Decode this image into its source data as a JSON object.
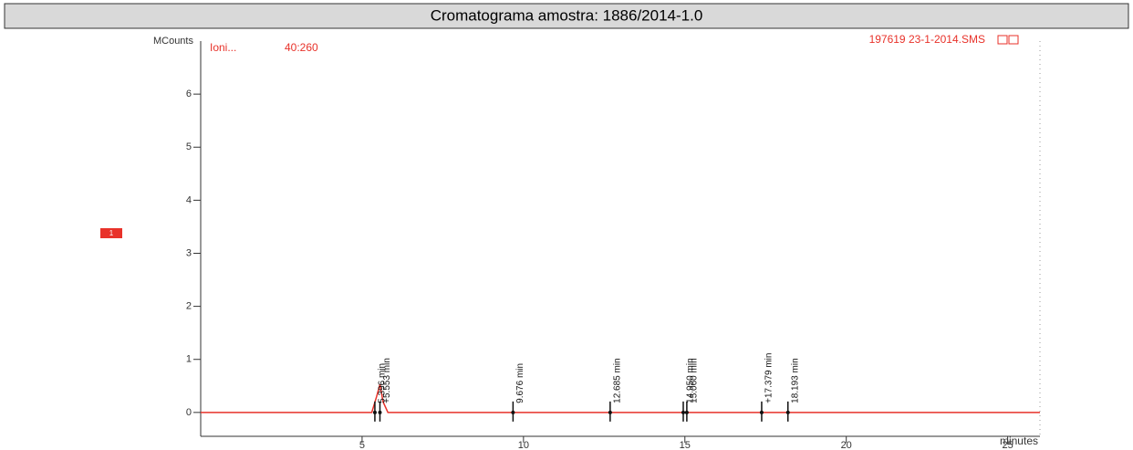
{
  "chart_data": {
    "type": "line",
    "title": "Cromatograma amostra: 1886/2014-1.0",
    "ylabel": "MCounts",
    "xlabel": "minutes",
    "trace_name": "Ioni...",
    "ion_range": "40:260",
    "file_name": "197619 23-1-2014.SMS",
    "channel_tag": "1",
    "x": [
      0,
      5.3,
      5.45,
      5.553,
      5.65,
      5.8,
      26
    ],
    "series": [
      {
        "name": "Ioni...",
        "color": "#e8322a",
        "values": [
          0,
          0,
          0.3,
          0.53,
          0.2,
          0,
          0
        ]
      }
    ],
    "peaks": {
      "x": [
        5.396,
        5.553,
        9.676,
        12.685,
        14.95,
        15.06,
        17.379,
        18.193
      ],
      "labels": [
        "5.396 min",
        "+5.553 min",
        "9.676 min",
        "12.685 min",
        "14.950 min",
        "15.060 min",
        "+17.379 min",
        "18.193 min"
      ]
    },
    "xlim": [
      0,
      26
    ],
    "xticks": [
      5,
      10,
      15,
      20,
      25
    ],
    "ylim": [
      -0.45,
      7
    ],
    "yticks": [
      0,
      1,
      2,
      3,
      4,
      5,
      6
    ]
  }
}
